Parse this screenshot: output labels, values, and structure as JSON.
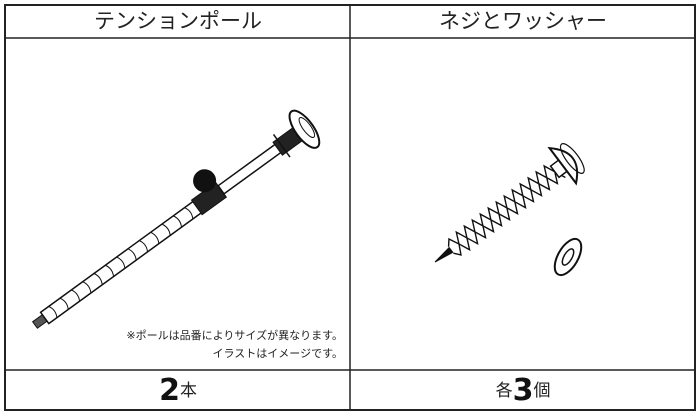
{
  "table": {
    "headers": [
      "テンションポール",
      "ネジとワッシャー"
    ],
    "notes": [
      "※ポールは品番によりサイズが異なります。",
      "イラストはイメージです。"
    ],
    "quantities": [
      {
        "count": "2",
        "unit": "本"
      },
      {
        "prefix": "各",
        "count": "3",
        "unit": "個"
      }
    ]
  }
}
